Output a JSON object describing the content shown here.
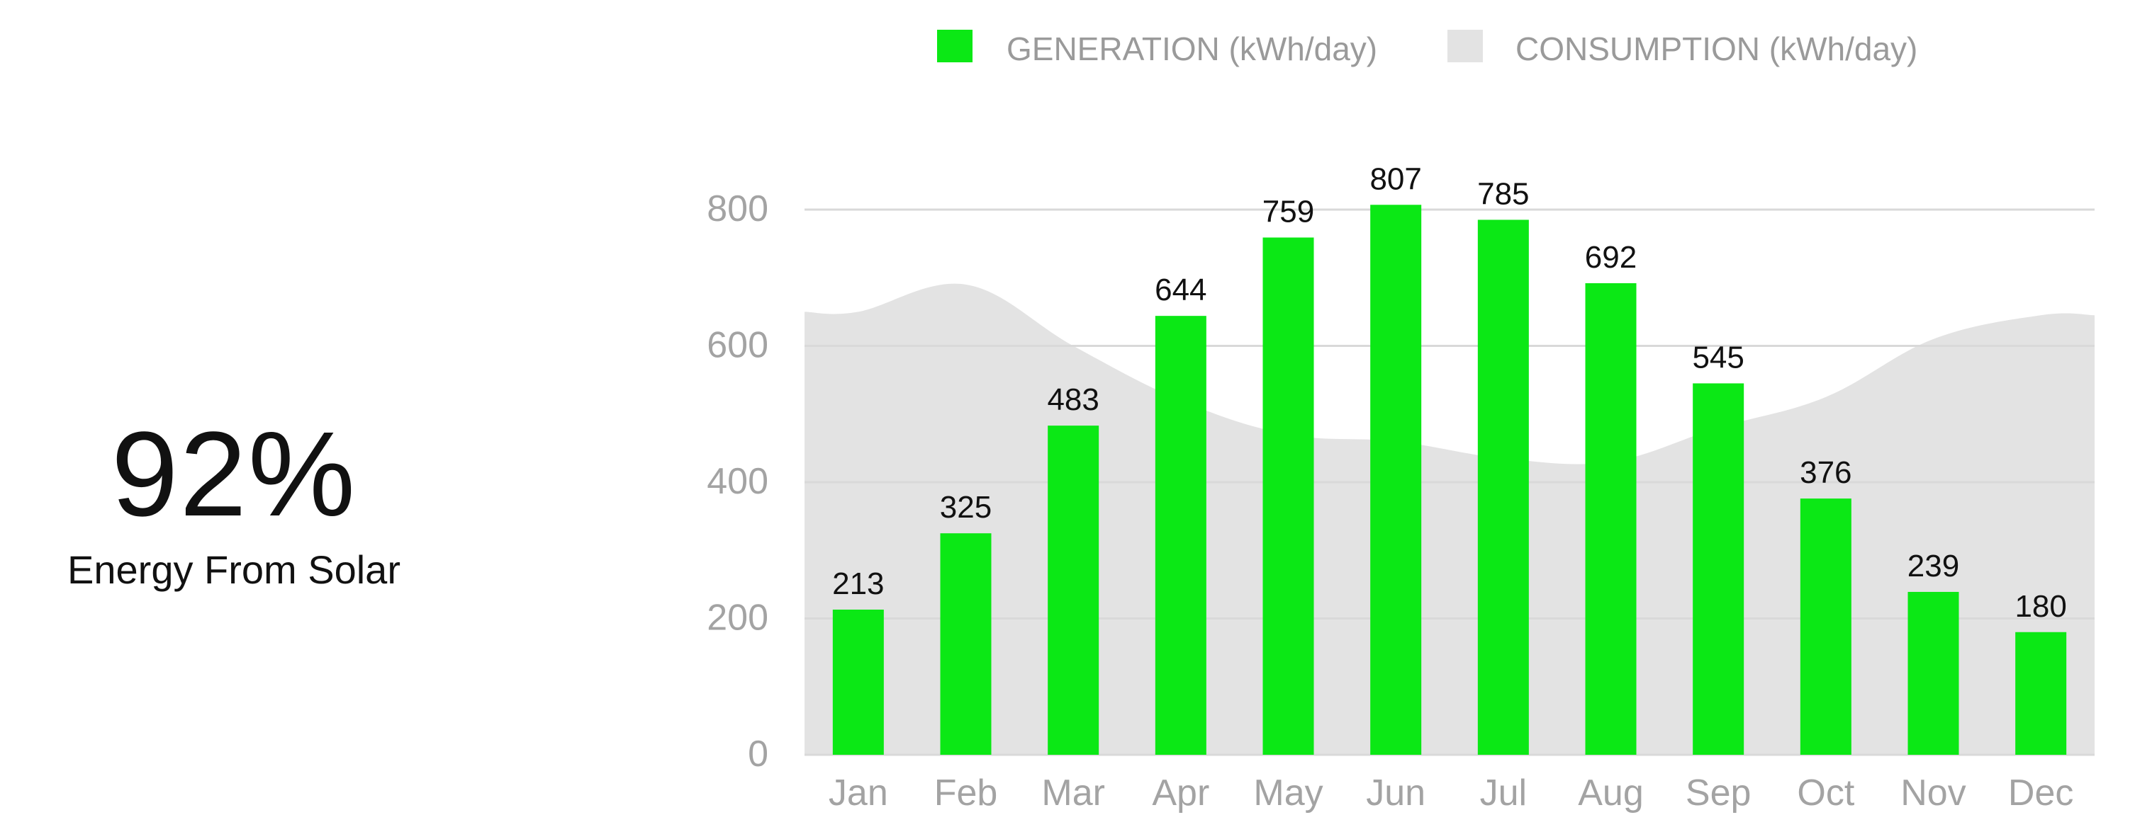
{
  "summary": {
    "value": "92%",
    "label": "Energy From Solar"
  },
  "colors": {
    "generation": "#0be815",
    "consumption": "#e3e3e3",
    "grid": "#d9d9d9",
    "axis_text": "#a3a3a3",
    "legend_text": "#9a9a9a",
    "data_label": "#111111"
  },
  "chart_data": {
    "type": "bar",
    "categories": [
      "Jan",
      "Feb",
      "Mar",
      "Apr",
      "May",
      "Jun",
      "Jul",
      "Aug",
      "Sep",
      "Oct",
      "Nov",
      "Dec"
    ],
    "series": [
      {
        "name": "GENERATION (kWh/day)",
        "type": "bar",
        "values": [
          213,
          325,
          483,
          644,
          759,
          807,
          785,
          692,
          545,
          376,
          239,
          180
        ],
        "data_labels": true
      },
      {
        "name": "CONSUMPTION (kWh/day)",
        "type": "area",
        "values": [
          650,
          690,
          600,
          520,
          470,
          460,
          435,
          430,
          480,
          525,
          610,
          645
        ]
      }
    ],
    "yticks": [
      0,
      200,
      400,
      600,
      800
    ],
    "ylim": [
      0,
      800
    ],
    "grid": true,
    "legend_position": "top"
  }
}
